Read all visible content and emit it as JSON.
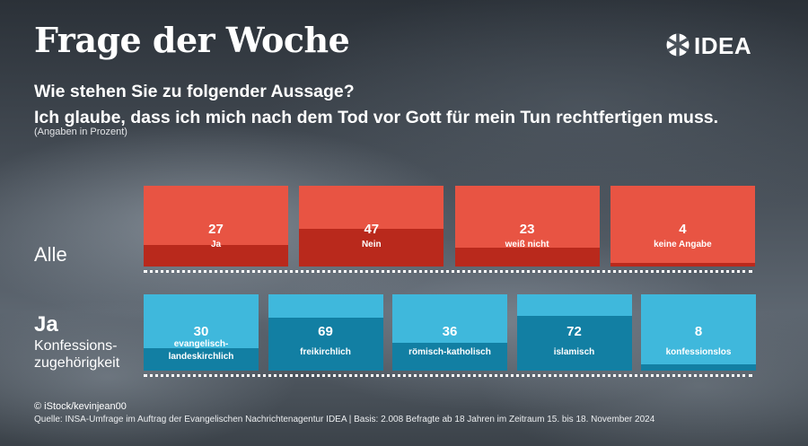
{
  "header": {
    "title": "Frage der Woche",
    "logo_text": "IDEA",
    "question_line1": "Wie stehen Sie zu folgender Aussage?",
    "question_line2": "Ich glaube, dass ich mich nach dem Tod vor Gott für mein Tun rechtfertigen muss.",
    "note": "(Angaben in Prozent)"
  },
  "rows": {
    "alle_label": "Alle",
    "ja_label": "Ja",
    "ja_sub_line1": "Konfessions-",
    "ja_sub_line2": "zugehörigkeit"
  },
  "colors": {
    "red_box": "#e85443",
    "red_fill": "#b9291c",
    "blue_box": "#3fb8dc",
    "blue_fill": "#127fa3"
  },
  "chart_data": [
    {
      "type": "bar",
      "title": "",
      "categories": [
        "Ja",
        "Nein",
        "weiß nicht",
        "keine Angabe"
      ],
      "values": [
        27,
        47,
        23,
        4
      ],
      "ylim": [
        0,
        100
      ]
    },
    {
      "type": "bar",
      "title": "",
      "categories": [
        "evangelisch-landeskirchlich",
        "freikirchlich",
        "römisch-katholisch",
        "islamisch",
        "konfessionslos"
      ],
      "category_lines": [
        [
          "evangelisch-",
          "landeskirchlich"
        ],
        [
          "freikirchlich"
        ],
        [
          "römisch-katholisch"
        ],
        [
          "islamisch"
        ],
        [
          "konfessionslos"
        ]
      ],
      "values": [
        30,
        69,
        36,
        72,
        8
      ],
      "ylim": [
        0,
        100
      ]
    }
  ],
  "footer": {
    "copyright": "© iStock/kevinjean00",
    "source": "Quelle: INSA-Umfrage im Auftrag der Evangelischen Nachrichtenagentur IDEA | Basis: 2.008 Befragte ab 18 Jahren im Zeitraum 15. bis 18. November 2024"
  }
}
